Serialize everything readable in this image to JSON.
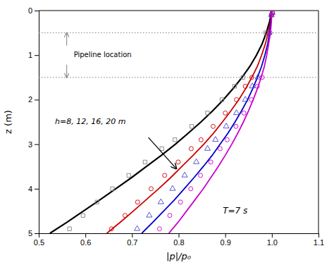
{
  "chart_data": {
    "type": "line",
    "xlabel": "|p|/p₀",
    "ylabel": "z (m)",
    "xlim": [
      0.5,
      1.1
    ],
    "ylim": [
      5.0,
      0.0
    ],
    "xticks": [
      0.5,
      0.6,
      0.7,
      0.8,
      0.9,
      {
        "value": 1.0,
        "label": "1.0"
      },
      1.1
    ],
    "yticks": [
      0,
      1,
      2,
      3,
      4,
      5
    ],
    "annotations": [
      {
        "text": "Pipeline location",
        "y": [
          0.5,
          1.5
        ]
      },
      {
        "text": "h=8, 12, 16, 20 m"
      },
      {
        "text": "T=7 s"
      }
    ],
    "series": [
      {
        "type": "line",
        "color": "#000000",
        "x": [
          1.0,
          0.995,
          0.988,
          0.979,
          0.967,
          0.953,
          0.936,
          0.917,
          0.896,
          0.873,
          0.848,
          0.821,
          0.793,
          0.763,
          0.731,
          0.699,
          0.665,
          0.631,
          0.596,
          0.561,
          0.524
        ],
        "values": [
          0.0,
          0.25,
          0.5,
          0.75,
          1.0,
          1.25,
          1.5,
          1.75,
          2.0,
          2.25,
          2.5,
          2.75,
          3.0,
          3.25,
          3.5,
          3.75,
          4.0,
          4.25,
          4.5,
          4.75,
          5.0
        ]
      },
      {
        "type": "line",
        "color": "#cc0000",
        "x": [
          1.0,
          0.997,
          0.992,
          0.986,
          0.978,
          0.969,
          0.957,
          0.944,
          0.929,
          0.912,
          0.894,
          0.875,
          0.854,
          0.831,
          0.807,
          0.783,
          0.757,
          0.73,
          0.703,
          0.675,
          0.646
        ],
        "values": [
          0.0,
          0.25,
          0.5,
          0.75,
          1.0,
          1.25,
          1.5,
          1.75,
          2.0,
          2.25,
          2.5,
          2.75,
          3.0,
          3.25,
          3.5,
          3.75,
          4.0,
          4.25,
          4.5,
          4.75,
          5.0
        ]
      },
      {
        "type": "line",
        "color": "#0000cc",
        "x": [
          1.0,
          0.998,
          0.995,
          0.991,
          0.985,
          0.978,
          0.969,
          0.959,
          0.948,
          0.935,
          0.921,
          0.906,
          0.889,
          0.872,
          0.853,
          0.833,
          0.812,
          0.791,
          0.768,
          0.745,
          0.721
        ],
        "values": [
          0.0,
          0.25,
          0.5,
          0.75,
          1.0,
          1.25,
          1.5,
          1.75,
          2.0,
          2.25,
          2.5,
          2.75,
          3.0,
          3.25,
          3.5,
          3.75,
          4.0,
          4.25,
          4.5,
          4.75,
          5.0
        ]
      },
      {
        "type": "line",
        "color": "#cc00cc",
        "x": [
          1.0,
          0.999,
          0.997,
          0.993,
          0.989,
          0.984,
          0.977,
          0.969,
          0.96,
          0.95,
          0.939,
          0.927,
          0.914,
          0.9,
          0.885,
          0.869,
          0.853,
          0.835,
          0.817,
          0.799,
          0.779
        ],
        "values": [
          0.0,
          0.25,
          0.5,
          0.75,
          1.0,
          1.25,
          1.5,
          1.75,
          2.0,
          2.25,
          2.5,
          2.75,
          3.0,
          3.25,
          3.5,
          3.75,
          4.0,
          4.25,
          4.5,
          4.75,
          5.0
        ]
      },
      {
        "type": "scatter",
        "marker": "square",
        "color": "#808080",
        "x": [
          1.001,
          0.999,
          0.987,
          0.938,
          0.92,
          0.893,
          0.862,
          0.828,
          0.792,
          0.764,
          0.728,
          0.693,
          0.658,
          0.625,
          0.595,
          0.566
        ],
        "values": [
          0.05,
          0.1,
          0.5,
          1.5,
          1.7,
          2.0,
          2.3,
          2.6,
          2.9,
          3.1,
          3.4,
          3.7,
          4.0,
          4.3,
          4.6,
          4.9
        ]
      },
      {
        "type": "scatter",
        "marker": "circle",
        "color": "#cc0000",
        "x": [
          1.001,
          0.999,
          0.991,
          0.957,
          0.943,
          0.924,
          0.9,
          0.874,
          0.848,
          0.827,
          0.799,
          0.77,
          0.741,
          0.712,
          0.685,
          0.656
        ],
        "values": [
          0.05,
          0.1,
          0.5,
          1.5,
          1.7,
          2.0,
          2.3,
          2.6,
          2.9,
          3.1,
          3.4,
          3.7,
          4.0,
          4.3,
          4.6,
          4.9
        ]
      },
      {
        "type": "scatter",
        "marker": "triangle",
        "color": "#4444cc",
        "x": [
          1.001,
          0.999,
          0.994,
          0.97,
          0.958,
          0.943,
          0.924,
          0.902,
          0.879,
          0.862,
          0.838,
          0.813,
          0.787,
          0.762,
          0.737,
          0.711
        ],
        "values": [
          0.05,
          0.1,
          0.5,
          1.5,
          1.7,
          2.0,
          2.3,
          2.6,
          2.9,
          3.1,
          3.4,
          3.7,
          4.0,
          4.3,
          4.6,
          4.9
        ]
      },
      {
        "type": "scatter",
        "marker": "circle",
        "color": "#cc00cc",
        "x": [
          1.001,
          0.999,
          0.996,
          0.979,
          0.969,
          0.956,
          0.94,
          0.923,
          0.904,
          0.889,
          0.869,
          0.847,
          0.826,
          0.804,
          0.781,
          0.759
        ],
        "values": [
          0.05,
          0.1,
          0.5,
          1.5,
          1.7,
          2.0,
          2.3,
          2.6,
          2.9,
          3.1,
          3.4,
          3.7,
          4.0,
          4.3,
          4.6,
          4.9
        ]
      }
    ]
  }
}
